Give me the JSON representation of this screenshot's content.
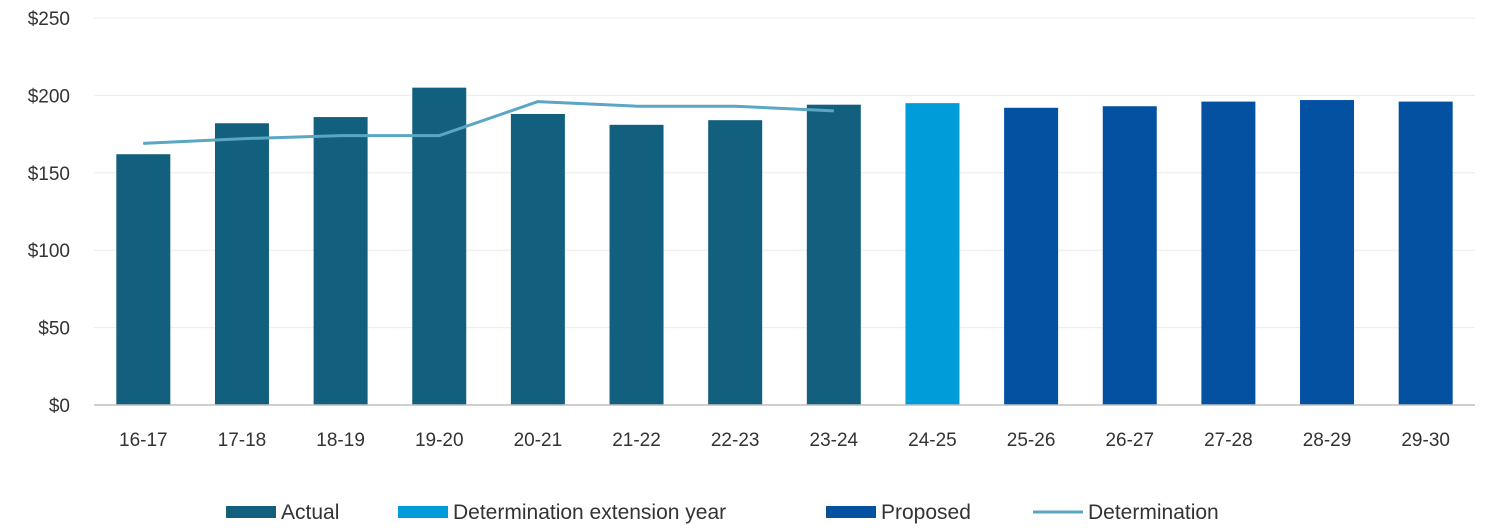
{
  "chart_data": {
    "type": "bar",
    "categories": [
      "16-17",
      "17-18",
      "18-19",
      "19-20",
      "20-21",
      "21-22",
      "22-23",
      "23-24",
      "24-25",
      "25-26",
      "26-27",
      "27-28",
      "28-29",
      "29-30"
    ],
    "series": [
      {
        "name": "Actual",
        "type": "bar",
        "color": "#12607e",
        "values": [
          162,
          182,
          186,
          205,
          188,
          181,
          184,
          194,
          null,
          null,
          null,
          null,
          null,
          null
        ]
      },
      {
        "name": "Determination extension year",
        "type": "bar",
        "color": "#009cda",
        "values": [
          null,
          null,
          null,
          null,
          null,
          null,
          null,
          null,
          195,
          null,
          null,
          null,
          null,
          null
        ]
      },
      {
        "name": "Proposed",
        "type": "bar",
        "color": "#0451a1",
        "values": [
          null,
          null,
          null,
          null,
          null,
          null,
          null,
          null,
          null,
          192,
          193,
          196,
          197,
          196
        ]
      },
      {
        "name": "Determination",
        "type": "line",
        "color": "#5ba6c4",
        "values": [
          169,
          172,
          174,
          174,
          196,
          193,
          193,
          190,
          null,
          null,
          null,
          null,
          null,
          null
        ]
      }
    ],
    "ylim": [
      0,
      250
    ],
    "yticks": [
      0,
      50,
      100,
      150,
      200,
      250
    ],
    "ytick_labels": [
      "$0",
      "$50",
      "$100",
      "$150",
      "$200",
      "$250"
    ],
    "grid": true,
    "legend_position": "bottom",
    "title": "",
    "xlabel": "",
    "ylabel": ""
  }
}
